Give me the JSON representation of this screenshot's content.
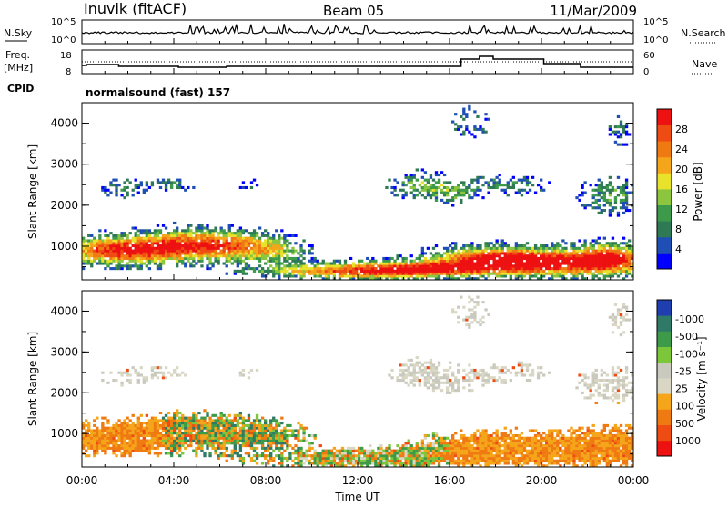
{
  "header": {
    "station": "Inuvik (fitACF)",
    "beam": "Beam 05",
    "date": "11/Mar/2009"
  },
  "top_panel": {
    "nsky_label": "N.Sky",
    "nsearch_label": "N.Search",
    "left_ticks": [
      "10^5",
      "10^0"
    ],
    "right_ticks": [
      "10^5",
      "10^0"
    ]
  },
  "freq_panel": {
    "freq_label": "Freq.",
    "unit_label": "[MHz]",
    "nave_label": "Nave",
    "left_ticks": [
      "18",
      "8"
    ],
    "right_ticks": [
      "60",
      "0"
    ]
  },
  "cpid": {
    "label": "CPID",
    "value": "normalsound (fast) 157"
  },
  "x_axis": {
    "label": "Time UT",
    "ticks": [
      "00:00",
      "04:00",
      "08:00",
      "12:00",
      "16:00",
      "20:00",
      "00:00"
    ]
  },
  "chart_data": [
    {
      "type": "heatmap",
      "name": "power",
      "ylabel": "Slant Range [km]",
      "yticks": [
        "1000",
        "2000",
        "3000",
        "4000"
      ],
      "ylim": [
        180,
        4500
      ],
      "xlim_hours": [
        0,
        24
      ],
      "colorbar": {
        "label": "Power [dB]",
        "ticks": [
          "4",
          "8",
          "12",
          "16",
          "20",
          "24",
          "28"
        ],
        "range": [
          0,
          32
        ]
      }
    },
    {
      "type": "heatmap",
      "name": "velocity",
      "ylabel": "Slant Range [km]",
      "yticks": [
        "1000",
        "2000",
        "3000",
        "4000"
      ],
      "ylim": [
        180,
        4500
      ],
      "xlim_hours": [
        0,
        24
      ],
      "colorbar": {
        "label": "Velocity [m s⁻¹]",
        "ticks": [
          "1000",
          "500",
          "100",
          "25",
          "-25",
          "-100",
          "-500",
          "-1000"
        ]
      }
    }
  ],
  "colors": {
    "power": [
      "#0000ff",
      "#1f4fb4",
      "#2f7a55",
      "#3d9a4a",
      "#8cc63f",
      "#e8e32a",
      "#f5a51a",
      "#f07a12",
      "#ee4c12",
      "#ee1111"
    ],
    "velocity": [
      "#1f3fb0",
      "#2f7a66",
      "#3c9a48",
      "#7cc63a",
      "#c9c9bd",
      "#d9d7c4",
      "#f5a51a",
      "#f07a12",
      "#ee4c12",
      "#ee1111"
    ]
  }
}
